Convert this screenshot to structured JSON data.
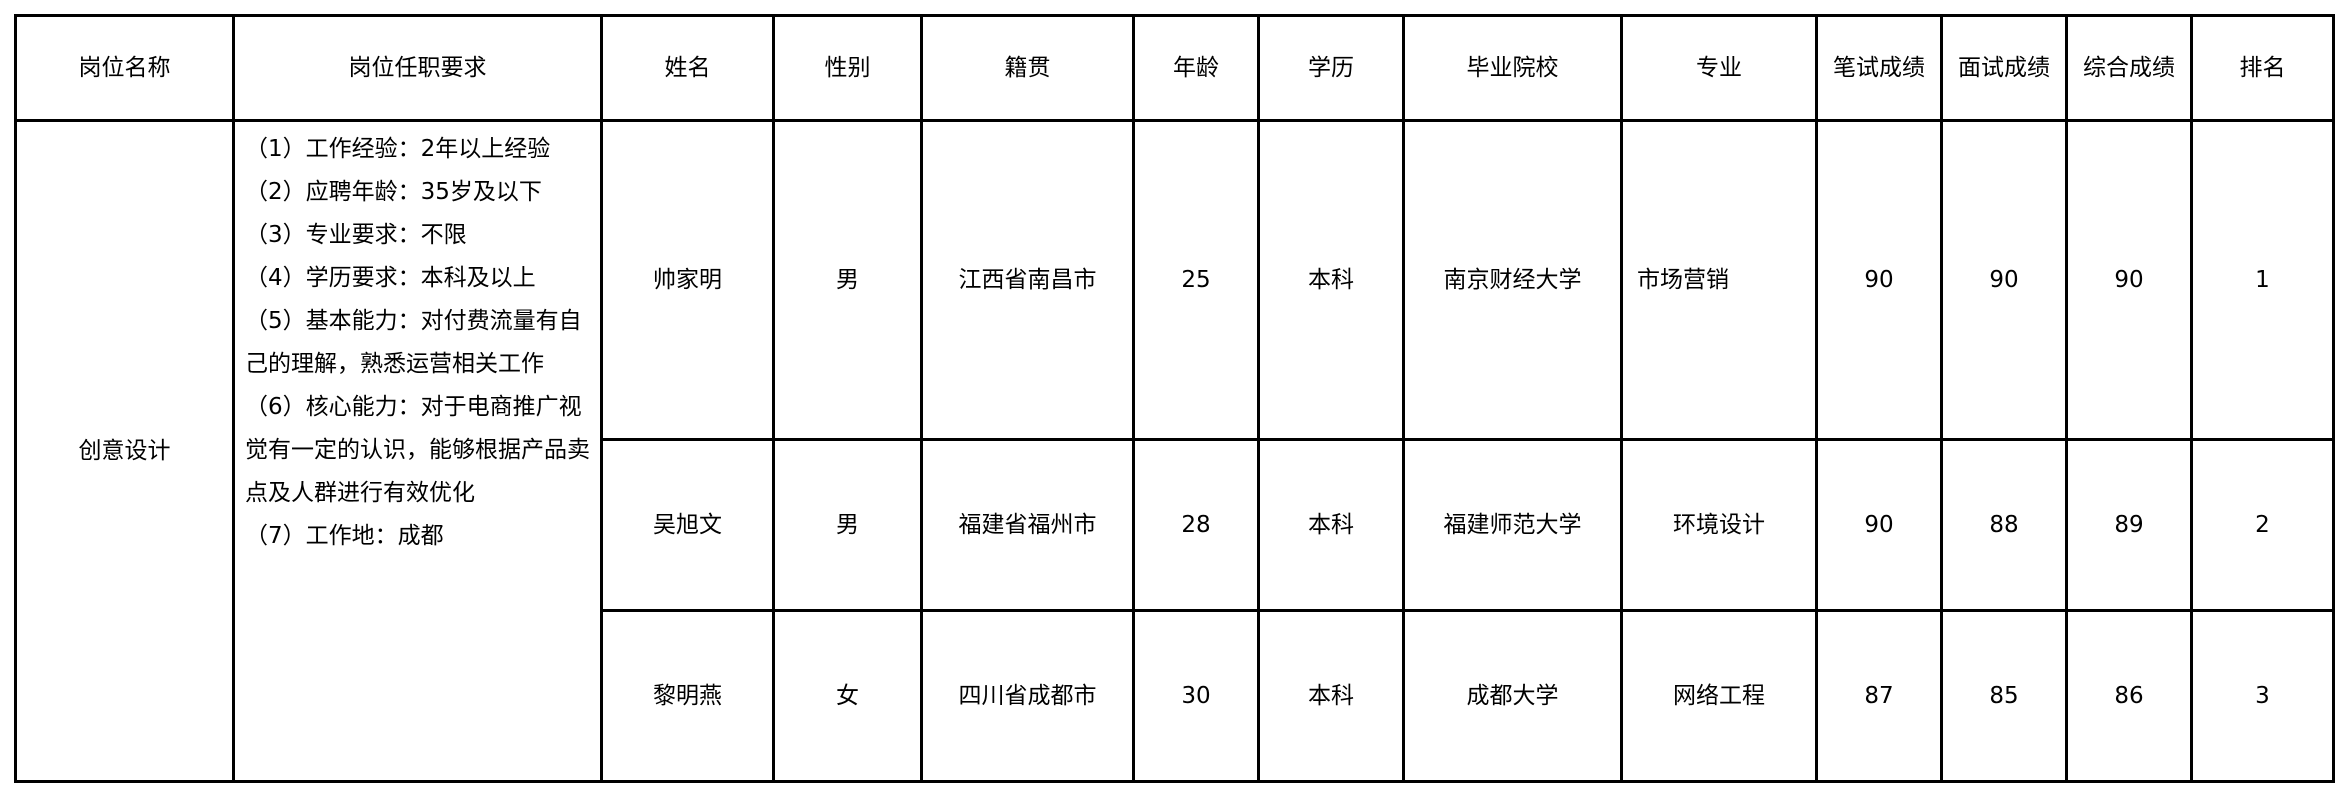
{
  "headers": [
    "岗位名称",
    "岗位任职要求",
    "姓名",
    "性别",
    "籍贯",
    "年龄",
    "学历",
    "毕业院校",
    "专业",
    "笔试成绩",
    "面试成绩",
    "综合成绩",
    "排名"
  ],
  "position": "创意设计",
  "requirements": [
    "（1）工作经验：2年以上经验",
    "（2）应聘年龄：35岁及以下",
    "（3）专业要求：不限",
    "（4）学历要求：本科及以上",
    "（5）基本能力：对付费流量有自己的理解，熟悉运营相关工作",
    "（6）核心能力：对于电商推广视觉有一定的认识，能够根据产品卖点及人群进行有效优化",
    "（7）工作地：成都"
  ],
  "rows": [
    {
      "name": "帅家明",
      "gender": "男",
      "origin": "江西省南昌市",
      "age": "25",
      "education": "本科",
      "school": "南京财经大学",
      "major": "市场营销",
      "written": "90",
      "interview": "90",
      "total": "90",
      "rank": "1"
    },
    {
      "name": "吴旭文",
      "gender": "男",
      "origin": "福建省福州市",
      "age": "28",
      "education": "本科",
      "school": "福建师范大学",
      "major": "环境设计",
      "written": "90",
      "interview": "88",
      "total": "89",
      "rank": "2"
    },
    {
      "name": "黎明燕",
      "gender": "女",
      "origin": "四川省成都市",
      "age": "30",
      "education": "本科",
      "school": "成都大学",
      "major": "网络工程",
      "written": "87",
      "interview": "85",
      "total": "86",
      "rank": "3"
    }
  ]
}
